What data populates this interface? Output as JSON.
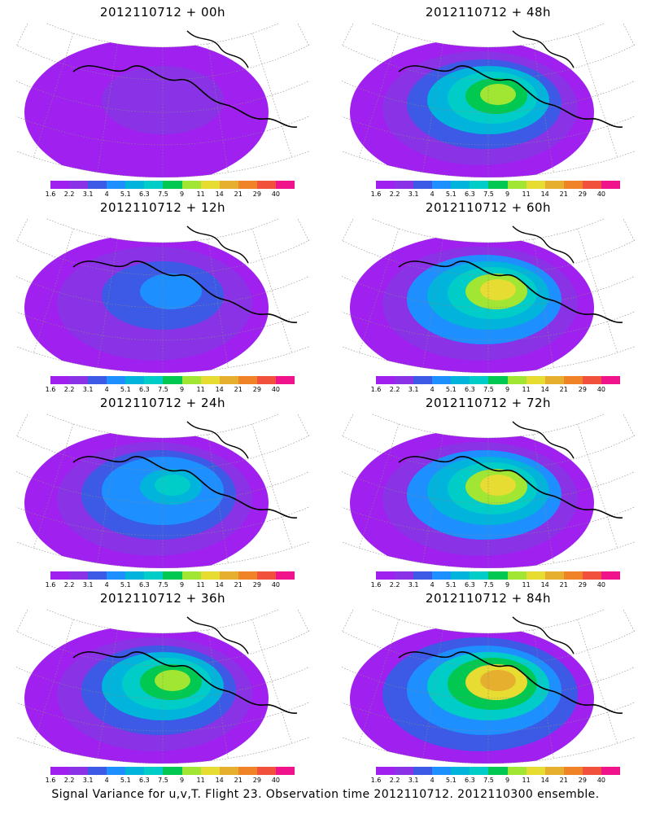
{
  "colorbar": {
    "labels": [
      "1.6",
      "2.2",
      "3.1",
      "4",
      "5.1",
      "6.3",
      "7.5",
      "9",
      "11",
      "14",
      "21",
      "29",
      "40"
    ],
    "colors": [
      "#a020f0",
      "#8a33e6",
      "#3c5ae6",
      "#1e8fff",
      "#00b4dc",
      "#00cdc8",
      "#00c850",
      "#a0e632",
      "#e6dc32",
      "#e6af2d",
      "#f08228",
      "#f0503c",
      "#f0148c"
    ]
  },
  "panels": [
    {
      "title": "2012110712 + 00h",
      "intensity": 0.1
    },
    {
      "title": "2012110712 + 48h",
      "intensity": 0.62
    },
    {
      "title": "2012110712 + 12h",
      "intensity": 0.25
    },
    {
      "title": "2012110712 + 60h",
      "intensity": 0.7
    },
    {
      "title": "2012110712 + 24h",
      "intensity": 0.4
    },
    {
      "title": "2012110712 + 72h",
      "intensity": 0.68
    },
    {
      "title": "2012110712 + 36h",
      "intensity": 0.55
    },
    {
      "title": "2012110712 + 84h",
      "intensity": 0.72
    }
  ],
  "footer": "Signal Variance for u,v,T. Flight 23. Observation time 2012110712. 2012110300 ensemble."
}
